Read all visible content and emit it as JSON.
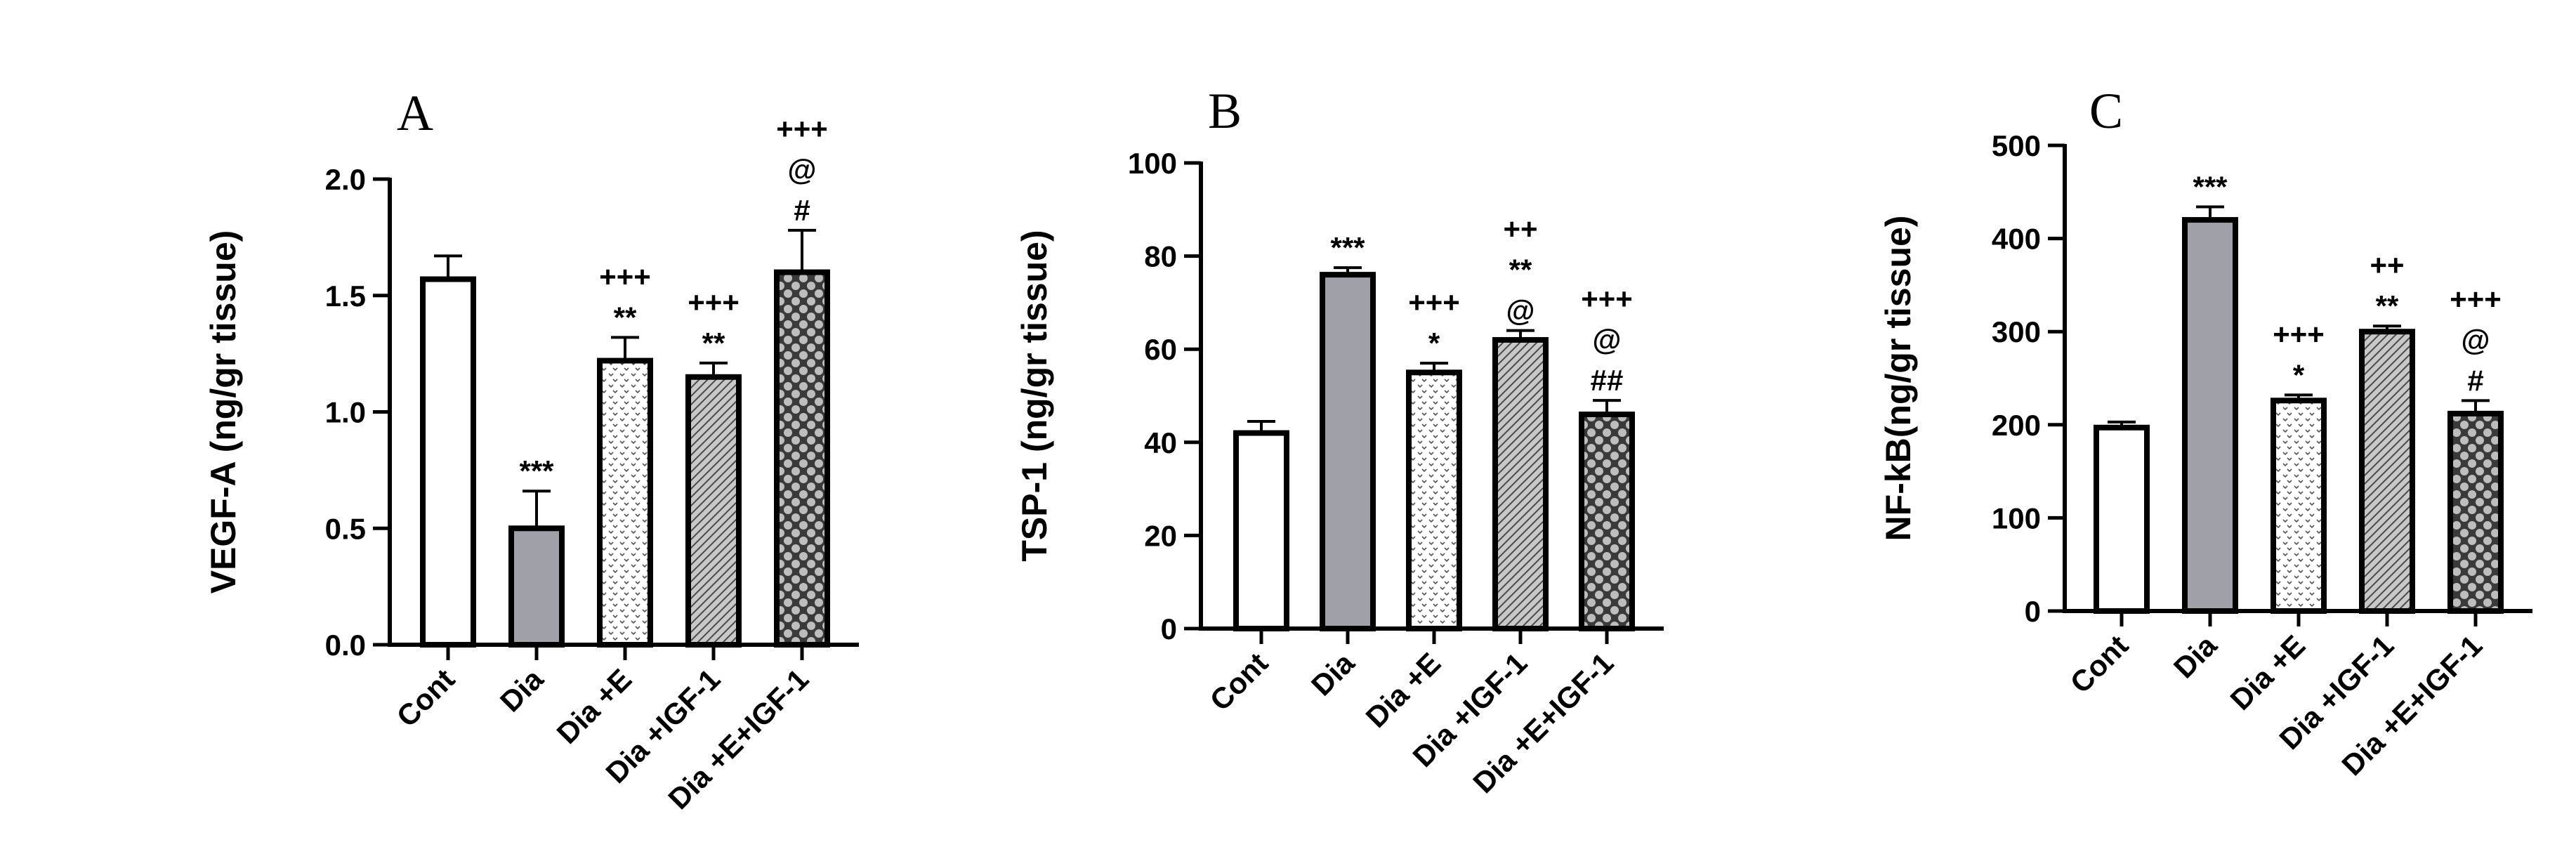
{
  "chart_data": [
    {
      "type": "bar",
      "panel_label": "A",
      "ylabel": "VEGF-A (ng/gr tissue)",
      "ylim": [
        0,
        2.0
      ],
      "yticks": [
        "0.0",
        "0.5",
        "1.0",
        "1.5",
        "2.0"
      ],
      "categories": [
        "Cont",
        "Dia",
        "Dia +E",
        "Dia +IGF-1",
        "Dia +E+IGF-1"
      ],
      "values": [
        1.57,
        0.5,
        1.22,
        1.15,
        1.6
      ],
      "errors": [
        0.1,
        0.16,
        0.1,
        0.06,
        0.18
      ],
      "annotations": [
        [],
        [
          "***"
        ],
        [
          "+++",
          "**"
        ],
        [
          "+++",
          "**"
        ],
        [
          "+++",
          "@",
          "#"
        ]
      ]
    },
    {
      "type": "bar",
      "panel_label": "B",
      "ylabel": "TSP-1 (ng/gr tissue)",
      "ylim": [
        0,
        100
      ],
      "yticks": [
        "0",
        "20",
        "40",
        "60",
        "80",
        "100"
      ],
      "categories": [
        "Cont",
        "Dia",
        "Dia +E",
        "Dia +IGF-1",
        "Dia +E+IGF-1"
      ],
      "values": [
        42,
        76,
        55,
        62,
        46
      ],
      "errors": [
        2.5,
        1.5,
        2.0,
        2.0,
        3.0
      ],
      "annotations": [
        [],
        [
          "***"
        ],
        [
          "+++",
          "*"
        ],
        [
          "++",
          "**",
          "@"
        ],
        [
          "+++",
          "@",
          "##"
        ]
      ]
    },
    {
      "type": "bar",
      "panel_label": "C",
      "ylabel": "NF-kB(ng/gr tissue)",
      "ylim": [
        0,
        500
      ],
      "yticks": [
        "0",
        "100",
        "200",
        "300",
        "400",
        "500"
      ],
      "categories": [
        "Cont",
        "Dia",
        "Dia +E",
        "Dia +IGF-1",
        "Dia +E+IGF-1"
      ],
      "values": [
        197,
        420,
        226,
        300,
        212
      ],
      "errors": [
        6,
        14,
        6,
        6,
        14
      ],
      "annotations": [
        [],
        [
          "***"
        ],
        [
          "+++",
          "*"
        ],
        [
          "++",
          "**"
        ],
        [
          "+++",
          "@",
          "#"
        ]
      ]
    }
  ]
}
